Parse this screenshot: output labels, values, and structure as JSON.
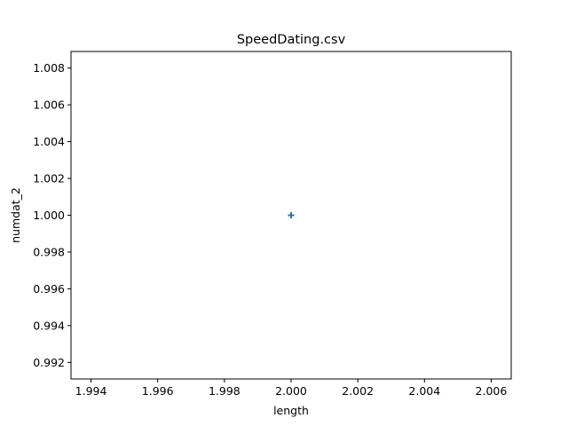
{
  "chart_data": {
    "type": "scatter",
    "title": "SpeedDating.csv",
    "xlabel": "length",
    "ylabel": "numdat_2",
    "xlim": [
      1.9934,
      2.0066
    ],
    "ylim": [
      0.9911,
      1.0089
    ],
    "xticks": [
      1.994,
      1.996,
      1.998,
      2.0,
      2.002,
      2.004,
      2.006
    ],
    "xtick_labels": [
      "1.994",
      "1.996",
      "1.998",
      "2.000",
      "2.002",
      "2.004",
      "2.006"
    ],
    "yticks": [
      0.992,
      0.994,
      0.996,
      0.998,
      1.0,
      1.002,
      1.004,
      1.006,
      1.008
    ],
    "ytick_labels": [
      "0.992",
      "0.994",
      "0.996",
      "0.998",
      "1.000",
      "1.002",
      "1.004",
      "1.006",
      "1.008"
    ],
    "grid": false,
    "marker": "plus",
    "series": [
      {
        "points": [
          {
            "x": 2.0,
            "y": 1.0
          }
        ],
        "color": "#1f77b4"
      }
    ]
  }
}
